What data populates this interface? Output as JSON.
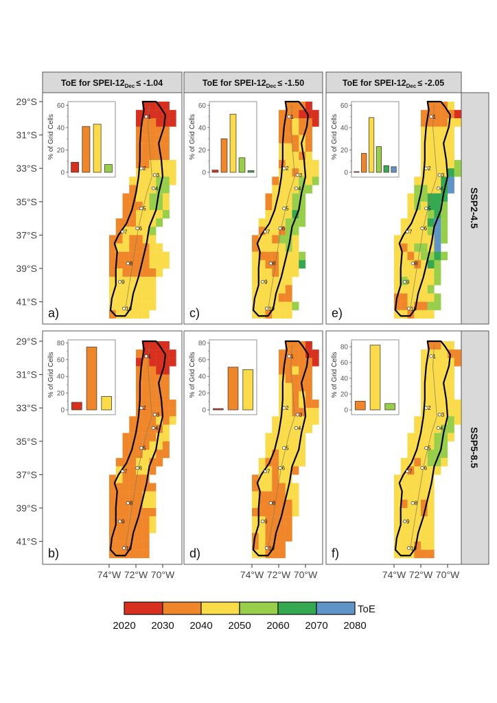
{
  "columns": [
    {
      "title_main": "ToE for SPEI-12",
      "title_sub": "Dec",
      "title_threshold": "≤ -1.04"
    },
    {
      "title_main": "ToE for SPEI-12",
      "title_sub": "Dec",
      "title_threshold": "≤ -1.50"
    },
    {
      "title_main": "ToE for SPEI-12",
      "title_sub": "Dec",
      "title_threshold": "≤ -2.05"
    }
  ],
  "rows": [
    {
      "label": "SSP2-4.5"
    },
    {
      "label": "SSP5-8.5"
    }
  ],
  "lat_ticks": [
    "29°S",
    "31°S",
    "33°S",
    "35°S",
    "37°S",
    "39°S",
    "41°S"
  ],
  "lat_values": [
    29,
    31,
    33,
    35,
    37,
    39,
    41
  ],
  "lon_ticks": [
    "74°W",
    "72°W",
    "70°W"
  ],
  "lon_values": [
    74,
    72,
    70
  ],
  "inset_ylabel": "% of Grid Cells",
  "legend": {
    "title": "ToE",
    "breaks": [
      "2020",
      "2030",
      "2040",
      "2050",
      "2060",
      "2070",
      "2080"
    ],
    "colors": [
      "#d7301f",
      "#f0862a",
      "#fadb4a",
      "#97cf4a",
      "#35a852",
      "#5e94c6"
    ]
  },
  "stations": [
    {
      "label": "1",
      "lon": 71.23,
      "lat": 29.9
    },
    {
      "label": "2",
      "lon": 71.6,
      "lat": 33.0
    },
    {
      "label": "3",
      "lon": 70.6,
      "lat": 33.4
    },
    {
      "label": "4",
      "lon": 70.7,
      "lat": 34.2
    },
    {
      "label": "5",
      "lon": 71.6,
      "lat": 35.4
    },
    {
      "label": "6",
      "lon": 71.9,
      "lat": 36.6
    },
    {
      "label": "7",
      "lon": 73.0,
      "lat": 36.8
    },
    {
      "label": "8",
      "lon": 72.6,
      "lat": 38.7
    },
    {
      "label": "9",
      "lon": 73.2,
      "lat": 39.8
    },
    {
      "label": "10",
      "lon": 72.9,
      "lat": 41.4
    }
  ],
  "chart_data": [
    {
      "panel": "a)",
      "column": 0,
      "row": 0,
      "type": "bar",
      "ylabel": "% of Grid Cells",
      "ylim": [
        0,
        62
      ],
      "yticks": [
        "0",
        "20",
        "40",
        "60"
      ],
      "ytick_values": [
        0,
        20,
        40,
        60
      ],
      "categories": [
        "2020-2030",
        "2030-2040",
        "2040-2050",
        "2050-2060"
      ],
      "color_index": [
        0,
        1,
        2,
        3
      ],
      "values": [
        9,
        41,
        43,
        7
      ],
      "map_grid": [
        ".....rrrr.",
        "....rrrrrr",
        "....roorrr",
        "....ooooo.",
        "....ooooo.",
        "....ooooo.",
        "....ooooo.",
        "....ooyyyy",
        "....yyyyyy",
        "...yyyyggy",
        "...oyyygg.",
        "..ooyyggy.",
        "..oooyggy.",
        "..ooyyyyg.",
        ".oooyyyg..",
        ".oyyyyg...",
        "ooyooyy...",
        "oyyoooyy..",
        "ooooooyyy.",
        "ooooooyyy.",
        "oyoooooy..",
        "yyyyyyy...",
        "yyyyyyy...",
        "yyyyyyy...",
        "yyyyyyy...",
        "oyyyyy...."
      ]
    },
    {
      "panel": "b)",
      "column": 0,
      "row": 1,
      "type": "bar",
      "ylabel": "% of Grid Cells",
      "ylim": [
        0,
        82
      ],
      "yticks": [
        "0",
        "20",
        "40",
        "60",
        "80"
      ],
      "ytick_values": [
        0,
        20,
        40,
        60,
        80
      ],
      "categories": [
        "2020-2030",
        "2030-2040",
        "2040-2050"
      ],
      "color_index": [
        0,
        1,
        2
      ],
      "values": [
        9,
        75,
        16
      ],
      "map_grid": [
        ".....rrrr.",
        "....orrrrr",
        "....rorrrr",
        "....ooorr.",
        "....ooooo.",
        "....ooooo.",
        "....ooooo.",
        "....oooooo",
        "....oooooo",
        "...ooooyoy",
        "...oooooy.",
        "..oooooyy.",
        "..ooooyyo.",
        "..oooyyoo.",
        ".oooyyoo..",
        ".yooyyo...",
        "oyoooo....",
        "ooooooo...",
        "oooooyy...",
        "oooooyy...",
        "ooooooo...",
        "ooooooy...",
        "ooooooy...",
        "oooooo....",
        "oooooo....",
        "oooooo...."
      ]
    },
    {
      "panel": "c)",
      "column": 1,
      "row": 0,
      "type": "bar",
      "ylabel": "% of Grid Cells",
      "ylim": [
        0,
        62
      ],
      "yticks": [
        "0",
        "20",
        "40",
        "60"
      ],
      "ytick_values": [
        0,
        20,
        40,
        60
      ],
      "categories": [
        "2020-2030",
        "2030-2040",
        "2040-2050",
        "2050-2060",
        "2060-2070"
      ],
      "color_index": [
        0,
        1,
        2,
        3,
        4
      ],
      "values": [
        2,
        30,
        52,
        13,
        1.5
      ],
      "map_grid": [
        ".....ooor.",
        "....ooorrr",
        "....ooyoor",
        "....ooyoo.",
        "....oooyo.",
        "....yyoyo.",
        "....yyyoy.",
        "....oyyyyy",
        "....yyoyyy",
        "...oyyygyg",
        "...yyyygg.",
        "..oyyygg..",
        "..oyyygg..",
        "..yyyyGg..",
        ".yyyyggg..",
        ".oyyogg...",
        "oyyoggy...",
        "oyyyygy...",
        "yoooyyyg..",
        "yyooyyyG..",
        "yyyoyyy...",
        "yyyyyy....",
        "yyyyyo....",
        "yyyyoo....",
        "yyyyyyg...",
        "yyoyyy...."
      ]
    },
    {
      "panel": "d)",
      "column": 1,
      "row": 1,
      "type": "bar",
      "ylabel": "% of Grid Cells",
      "ylim": [
        0,
        82
      ],
      "yticks": [
        "0",
        "20",
        "40",
        "60",
        "80"
      ],
      "ytick_values": [
        0,
        20,
        40,
        60,
        80
      ],
      "categories": [
        "2020-2030",
        "2030-2040",
        "2040-2050"
      ],
      "color_index": [
        0,
        1,
        2
      ],
      "values": [
        1.5,
        51,
        48
      ],
      "map_grid": [
        ".....ooor.",
        "....oooorr",
        "....ooooor",
        "....ooyoo.",
        "....yoooo.",
        "....yyooo.",
        "....yyoyo.",
        "....yyoyoo",
        "....yyooyy",
        "...yyyyyyy",
        "...yyyyyy.",
        "..yyyyyy..",
        "..yyyyyy..",
        "..yoyyyy..",
        ".yooyyyy..",
        ".yyoyyo...",
        "oyyoyy....",
        "oyyooyy...",
        "yooooyy...",
        "yoooooy...",
        "ooooooy...",
        "yyoooo....",
        "yyoooo....",
        "oyoooo....",
        "oyooo.....",
        "yyooo....."
      ]
    },
    {
      "panel": "e)",
      "column": 2,
      "row": 0,
      "type": "bar",
      "ylabel": "% of Grid Cells",
      "ylim": [
        0,
        62
      ],
      "yticks": [
        "0",
        "20",
        "40",
        "60"
      ],
      "ytick_values": [
        0,
        20,
        40,
        60
      ],
      "categories": [
        "2020-2030",
        "2030-2040",
        "2040-2050",
        "2050-2060",
        "2060-2070",
        "2070-2080"
      ],
      "color_index": [
        0,
        1,
        2,
        3,
        4,
        5
      ],
      "values": [
        0.5,
        17,
        49,
        23,
        6,
        5
      ],
      "map_grid": [
        ".....oooy.",
        "....ooooor",
        "....ooooyy",
        "....yyyyy.",
        "....yyyyy.",
        "....yyyyy.",
        "....yyyyy.",
        "....yyyyyg",
        "....yyyyGg",
        "...yyyyGb.",
        "...ggyyGb.",
        "..yggGGG..",
        "..ygyGGg..",
        "..yyygGg..",
        ".yyyyGbg..",
        ".yyyygbg..",
        "yyyyyybg..",
        "yoyggyb...",
        "yyoyggGg..",
        "yyyoyGg...",
        "yyyyyyg...",
        "ygyyyyg...",
        "yyyyyg....",
        "ooyyyyg...",
        "ooyoogg...",
        "yyoyyy...."
      ]
    },
    {
      "panel": "f)",
      "column": 2,
      "row": 1,
      "type": "bar",
      "ylabel": "% of Grid Cells",
      "ylim": [
        0,
        87
      ],
      "yticks": [
        "0",
        "20",
        "40",
        "60",
        "80"
      ],
      "ytick_values": [
        0,
        20,
        40,
        60,
        80
      ],
      "categories": [
        "2030-2040",
        "2040-2050",
        "2050-2060"
      ],
      "color_index": [
        1,
        2,
        3
      ],
      "values": [
        11,
        82,
        8
      ],
      "map_grid": [
        ".....ooyy.",
        "....yyyyoo",
        "....yyyyyo",
        "....yyyyy.",
        "....yyyyy.",
        "....yyyyy.",
        "....yyyyy.",
        "....yyyyyy",
        "....yyyyyy",
        "...yyyyygy",
        "...yyyygg.",
        "..yyyyggy.",
        "..yyyygg..",
        "..yyyggg..",
        ".yyoyggy..",
        ".yoyyyy...",
        "yyyyyy....",
        "yyyyyy....",
        "yyyyyy....",
        "yoyyoy....",
        "yyyyoy....",
        "yyyyyy....",
        "yyyyyy....",
        "yyyyyy....",
        "yyyoyy....",
        "yyyooo...."
      ]
    }
  ]
}
